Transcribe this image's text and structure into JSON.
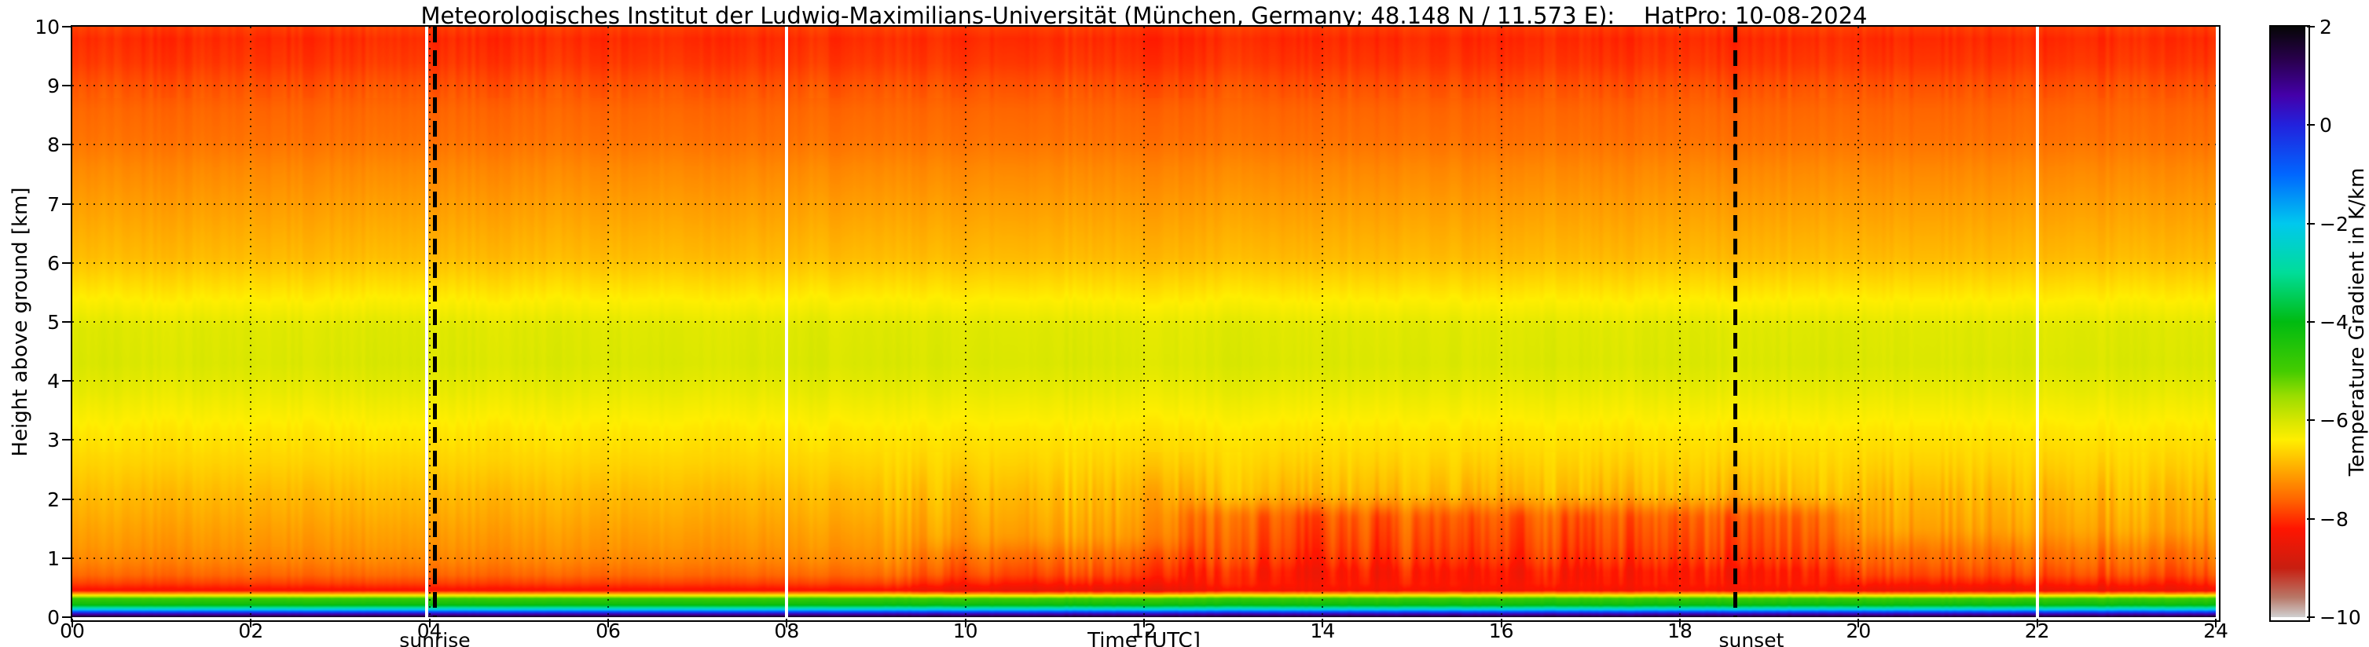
{
  "title": "Meteorologisches Institut der Ludwig-Maximilians-Universität (München, Germany; 48.148 N / 11.573 E):    HatPro: 10-08-2024",
  "axes": {
    "x": {
      "label": "Time [UTC]",
      "min": 0,
      "max": 24,
      "ticks": [
        {
          "v": 0,
          "label": "00"
        },
        {
          "v": 2,
          "label": "02"
        },
        {
          "v": 4,
          "label": "04"
        },
        {
          "v": 6,
          "label": "06"
        },
        {
          "v": 8,
          "label": "08"
        },
        {
          "v": 10,
          "label": "10"
        },
        {
          "v": 12,
          "label": "12"
        },
        {
          "v": 14,
          "label": "14"
        },
        {
          "v": 16,
          "label": "16"
        },
        {
          "v": 18,
          "label": "18"
        },
        {
          "v": 20,
          "label": "20"
        },
        {
          "v": 22,
          "label": "22"
        },
        {
          "v": 24,
          "label": "24"
        }
      ]
    },
    "y": {
      "label": "Height above ground [km]",
      "min": 0,
      "max": 10,
      "ticks": [
        {
          "v": 0,
          "label": "0"
        },
        {
          "v": 1,
          "label": "1"
        },
        {
          "v": 2,
          "label": "2"
        },
        {
          "v": 3,
          "label": "3"
        },
        {
          "v": 4,
          "label": "4"
        },
        {
          "v": 5,
          "label": "5"
        },
        {
          "v": 6,
          "label": "6"
        },
        {
          "v": 7,
          "label": "7"
        },
        {
          "v": 8,
          "label": "8"
        },
        {
          "v": 9,
          "label": "9"
        },
        {
          "v": 10,
          "label": "10"
        }
      ]
    }
  },
  "colorbar": {
    "label": "Temperature Gradient in K/km",
    "min": -10,
    "max": 2,
    "ticks": [
      {
        "v": 2,
        "label": "2"
      },
      {
        "v": 0,
        "label": "0"
      },
      {
        "v": -2,
        "label": "−2"
      },
      {
        "v": -4,
        "label": "−4"
      },
      {
        "v": -6,
        "label": "−6"
      },
      {
        "v": -8,
        "label": "−8"
      },
      {
        "v": -10,
        "label": "−10"
      }
    ],
    "stops": [
      {
        "v": 2.0,
        "color": "#060606"
      },
      {
        "v": 1.3,
        "color": "#2a0050"
      },
      {
        "v": 0.6,
        "color": "#4400aa"
      },
      {
        "v": 0.0,
        "color": "#2222dd"
      },
      {
        "v": -1.0,
        "color": "#0066ff"
      },
      {
        "v": -2.0,
        "color": "#00c8ee"
      },
      {
        "v": -3.0,
        "color": "#00dd99"
      },
      {
        "v": -4.0,
        "color": "#00bb11"
      },
      {
        "v": -5.0,
        "color": "#44cc00"
      },
      {
        "v": -5.5,
        "color": "#99dd00"
      },
      {
        "v": -6.0,
        "color": "#d6e600"
      },
      {
        "v": -6.4,
        "color": "#ffee00"
      },
      {
        "v": -7.0,
        "color": "#ffaa00"
      },
      {
        "v": -7.6,
        "color": "#ff6600"
      },
      {
        "v": -8.2,
        "color": "#ff1500"
      },
      {
        "v": -9.0,
        "color": "#c81e10"
      },
      {
        "v": -9.6,
        "color": "#b87868"
      },
      {
        "v": -10.0,
        "color": "#d0d0d0"
      }
    ]
  },
  "annotations": {
    "sunrise": {
      "label": "sunrise",
      "time": 4.06,
      "label_time": 4.06
    },
    "sunset": {
      "label": "sunset",
      "time": 18.62,
      "label_time": 18.8
    },
    "data_gaps": [
      3.97,
      8.0,
      22.0
    ]
  },
  "chart_data": {
    "type": "heatmap",
    "x_name": "Time [UTC]",
    "x_range": [
      0,
      24
    ],
    "y_name": "Height above ground [km]",
    "y_range": [
      0,
      10
    ],
    "value_name": "Temperature Gradient in K/km",
    "value_range": [
      -10,
      2
    ],
    "profile_points": [
      [
        0.0,
        2.0
      ],
      [
        0.03,
        1.2
      ],
      [
        0.07,
        0.2
      ],
      [
        0.1,
        -0.8
      ],
      [
        0.14,
        -2.2
      ],
      [
        0.18,
        -3.3
      ],
      [
        0.22,
        -4.2
      ],
      [
        0.32,
        -4.8
      ],
      [
        0.4,
        -7.0
      ],
      [
        0.46,
        -8.3
      ],
      [
        0.58,
        -7.9
      ],
      [
        0.72,
        -7.6
      ],
      [
        0.95,
        -7.35
      ],
      [
        1.2,
        -7.2
      ],
      [
        1.6,
        -7.05
      ],
      [
        2.0,
        -6.9
      ],
      [
        2.6,
        -6.65
      ],
      [
        3.2,
        -6.45
      ],
      [
        3.8,
        -6.2
      ],
      [
        4.3,
        -6.05
      ],
      [
        4.9,
        -6.1
      ],
      [
        5.3,
        -6.35
      ],
      [
        5.7,
        -6.6
      ],
      [
        6.1,
        -6.85
      ],
      [
        6.6,
        -7.0
      ],
      [
        7.1,
        -7.15
      ],
      [
        7.6,
        -7.3
      ],
      [
        8.1,
        -7.5
      ],
      [
        8.6,
        -7.6
      ],
      [
        9.0,
        -7.75
      ],
      [
        9.4,
        -7.95
      ],
      [
        9.8,
        -8.05
      ],
      [
        10.0,
        -7.9
      ]
    ],
    "anomalies": [
      {
        "t_start": 12.5,
        "t_end": 19.8,
        "h_start": 0.6,
        "h_end": 1.9,
        "delta": -0.85
      },
      {
        "t_start": 9.5,
        "t_end": 12.5,
        "h_start": 0.35,
        "h_end": 1.2,
        "delta": -0.35
      },
      {
        "t_start": 19.8,
        "t_end": 24.0,
        "h_start": 0.4,
        "h_end": 1.3,
        "delta": -0.3
      }
    ],
    "noise": {
      "night_amp": 0.12,
      "day_amp": 0.32,
      "day_start": 9.0,
      "upper_amp": 0.08,
      "top_amp": 0.13
    }
  }
}
